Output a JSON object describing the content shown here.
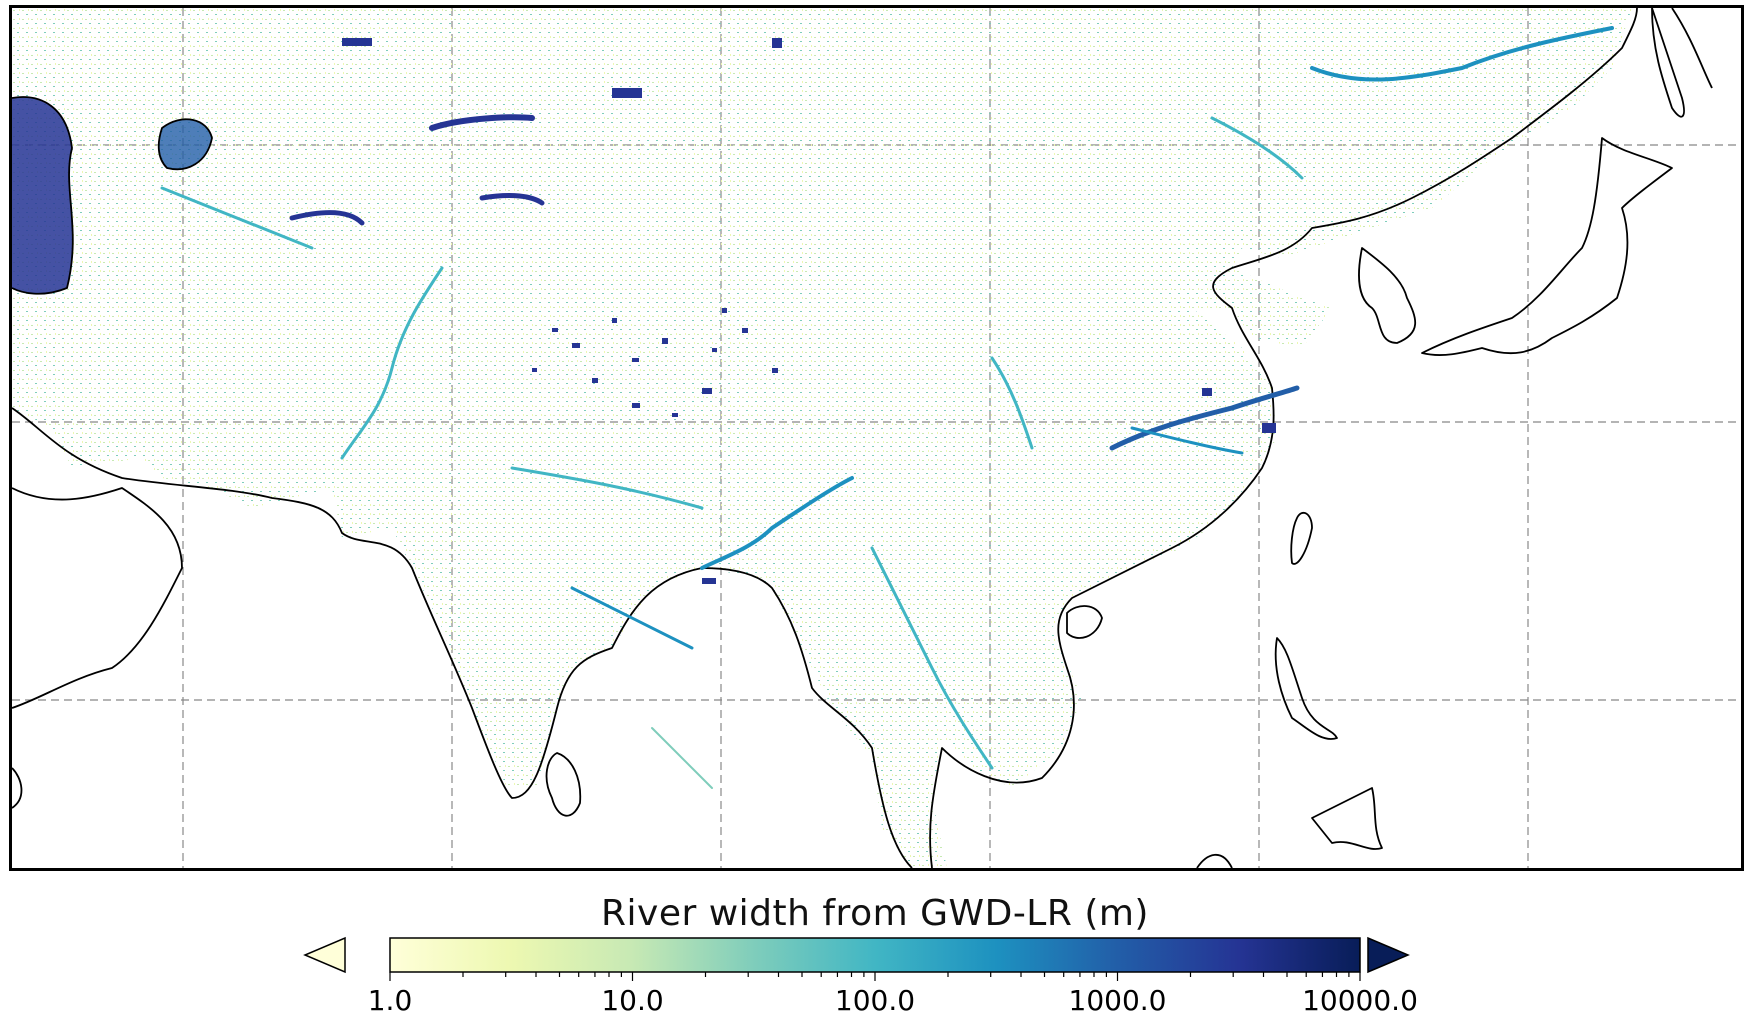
{
  "colorbar": {
    "title": "River width from GWD-LR (m)",
    "scale": "log",
    "range": [
      1.0,
      10000.0
    ],
    "extend": "both",
    "tick_labels": [
      "1.0",
      "10.0",
      "100.0",
      "1000.0",
      "10000.0"
    ],
    "tick_values": [
      1,
      10,
      100,
      1000,
      10000
    ],
    "colormap_stops": [
      "#ffffd9",
      "#edf8b1",
      "#c7e9b4",
      "#7fcdbb",
      "#41b6c4",
      "#1d91c0",
      "#225ea8",
      "#253494",
      "#081d58"
    ],
    "under_color": "#ffffd9",
    "over_color": "#081d58"
  },
  "map": {
    "coastline_color": "#000000",
    "gridline_color": "#888888",
    "gridline_style": "dashed",
    "land_color": "#ffffff",
    "ocean_color": "#ffffff"
  }
}
